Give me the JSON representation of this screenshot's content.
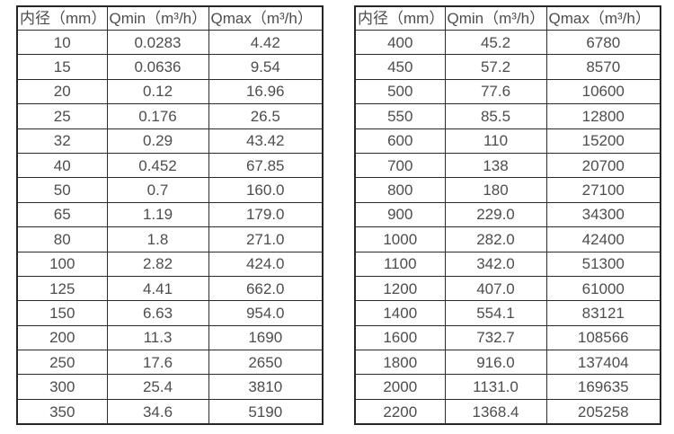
{
  "page": {
    "background_color": "#ffffff",
    "text_color": "#4d4d4d",
    "border_color": "#2b2b2b"
  },
  "tables": [
    {
      "name": "flow-rate-table-small-diameters",
      "headers": [
        "内径（mm）",
        "Qmin（m³/h）",
        "Qmax（m³/h）"
      ],
      "rows": [
        [
          "10",
          "0.0283",
          "4.42"
        ],
        [
          "15",
          "0.0636",
          "9.54"
        ],
        [
          "20",
          "0.12",
          "16.96"
        ],
        [
          "25",
          "0.176",
          "26.5"
        ],
        [
          "32",
          "0.29",
          "43.42"
        ],
        [
          "40",
          "0.452",
          "67.85"
        ],
        [
          "50",
          "0.7",
          "160.0"
        ],
        [
          "65",
          "1.19",
          "179.0"
        ],
        [
          "80",
          "1.8",
          "271.0"
        ],
        [
          "100",
          "2.82",
          "424.0"
        ],
        [
          "125",
          "4.41",
          "662.0"
        ],
        [
          "150",
          "6.63",
          "954.0"
        ],
        [
          "200",
          "11.3",
          "1690"
        ],
        [
          "250",
          "17.6",
          "2650"
        ],
        [
          "300",
          "25.4",
          "3810"
        ],
        [
          "350",
          "34.6",
          "5190"
        ]
      ]
    },
    {
      "name": "flow-rate-table-large-diameters",
      "headers": [
        "内径（mm）",
        "Qmin（m³/h）",
        "Qmax（m³/h）"
      ],
      "rows": [
        [
          "400",
          "45.2",
          "6780"
        ],
        [
          "450",
          "57.2",
          "8570"
        ],
        [
          "500",
          "77.6",
          "10600"
        ],
        [
          "550",
          "85.5",
          "12800"
        ],
        [
          "600",
          "110",
          "15200"
        ],
        [
          "700",
          "138",
          "20700"
        ],
        [
          "800",
          "180",
          "27100"
        ],
        [
          "900",
          "229.0",
          "34300"
        ],
        [
          "1000",
          "282.0",
          "42400"
        ],
        [
          "1100",
          "342.0",
          "51300"
        ],
        [
          "1200",
          "407.0",
          "61000"
        ],
        [
          "1400",
          "554.1",
          "83121"
        ],
        [
          "1600",
          "732.7",
          "108566"
        ],
        [
          "1800",
          "916.0",
          "137404"
        ],
        [
          "2000",
          "1131.0",
          "169635"
        ],
        [
          "2200",
          "1368.4",
          "205258"
        ]
      ]
    }
  ]
}
